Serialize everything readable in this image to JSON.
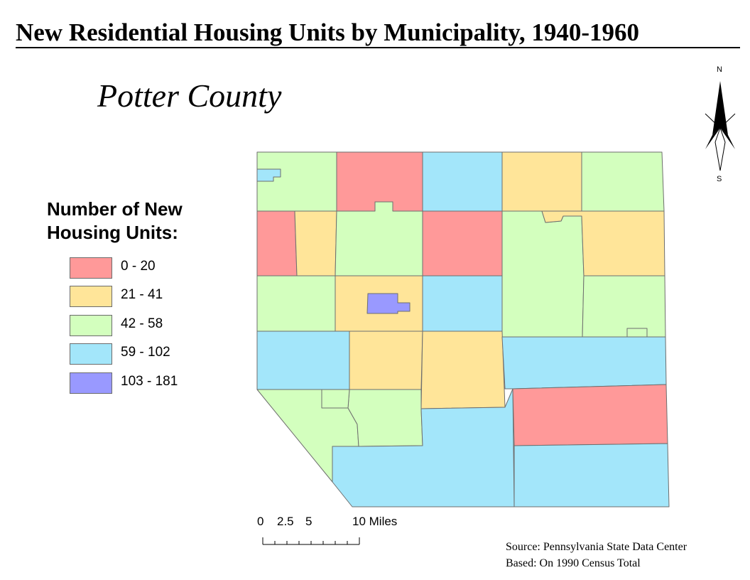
{
  "title": "New Residential Housing Units by Municipality, 1940-1960",
  "subtitle": "Potter County",
  "legend": {
    "title_line1": "Number of New",
    "title_line2": "Housing Units:",
    "items": [
      {
        "label": "0 - 20",
        "color": "#ff9999"
      },
      {
        "label": "21 - 41",
        "color": "#ffe599"
      },
      {
        "label": "42 - 58",
        "color": "#d3ffbe"
      },
      {
        "label": "59 - 102",
        "color": "#a3e6fa"
      },
      {
        "label": "103 - 181",
        "color": "#9999ff"
      }
    ]
  },
  "north_arrow": {
    "n": "N",
    "s": "S",
    "icon": "north-arrow-icon"
  },
  "scale": {
    "label0": "0",
    "label1": "2.5",
    "label2": "5",
    "label3": "10 Miles"
  },
  "source": {
    "line1": "Source: Pennsylvania State Data Center",
    "line2": "Based: On 1990 Census Total"
  },
  "municipalities": [
    {
      "id": "nw-top",
      "class": "42 - 58"
    },
    {
      "id": "nw-small-borough",
      "class": "59 - 102"
    },
    {
      "id": "n-2",
      "class": "0 - 20"
    },
    {
      "id": "n-3",
      "class": "59 - 102"
    },
    {
      "id": "n-4",
      "class": "21 - 41"
    },
    {
      "id": "ne-top",
      "class": "42 - 58"
    },
    {
      "id": "r2-1",
      "class": "0 - 20"
    },
    {
      "id": "r2-2",
      "class": "21 - 41"
    },
    {
      "id": "r2-3",
      "class": "42 - 58"
    },
    {
      "id": "r2-4",
      "class": "0 - 20"
    },
    {
      "id": "r2-5",
      "class": "42 - 58"
    },
    {
      "id": "r2-6",
      "class": "21 - 41"
    },
    {
      "id": "r3-1",
      "class": "42 - 58"
    },
    {
      "id": "r3-2",
      "class": "21 - 41"
    },
    {
      "id": "coudersport",
      "class": "103 - 181"
    },
    {
      "id": "r3-4",
      "class": "59 - 102"
    },
    {
      "id": "r3-6",
      "class": "42 - 58"
    },
    {
      "id": "r4-1",
      "class": "59 - 102"
    },
    {
      "id": "r4-2",
      "class": "21 - 41"
    },
    {
      "id": "r4-3",
      "class": "21 - 41"
    },
    {
      "id": "r4-4",
      "class": "59 - 102"
    },
    {
      "id": "r5-1",
      "class": "42 - 58"
    },
    {
      "id": "r5-2",
      "class": "42 - 58"
    },
    {
      "id": "r5-3",
      "class": "59 - 102"
    },
    {
      "id": "r5-4",
      "class": "0 - 20"
    },
    {
      "id": "r6-4",
      "class": "59 - 102"
    }
  ]
}
